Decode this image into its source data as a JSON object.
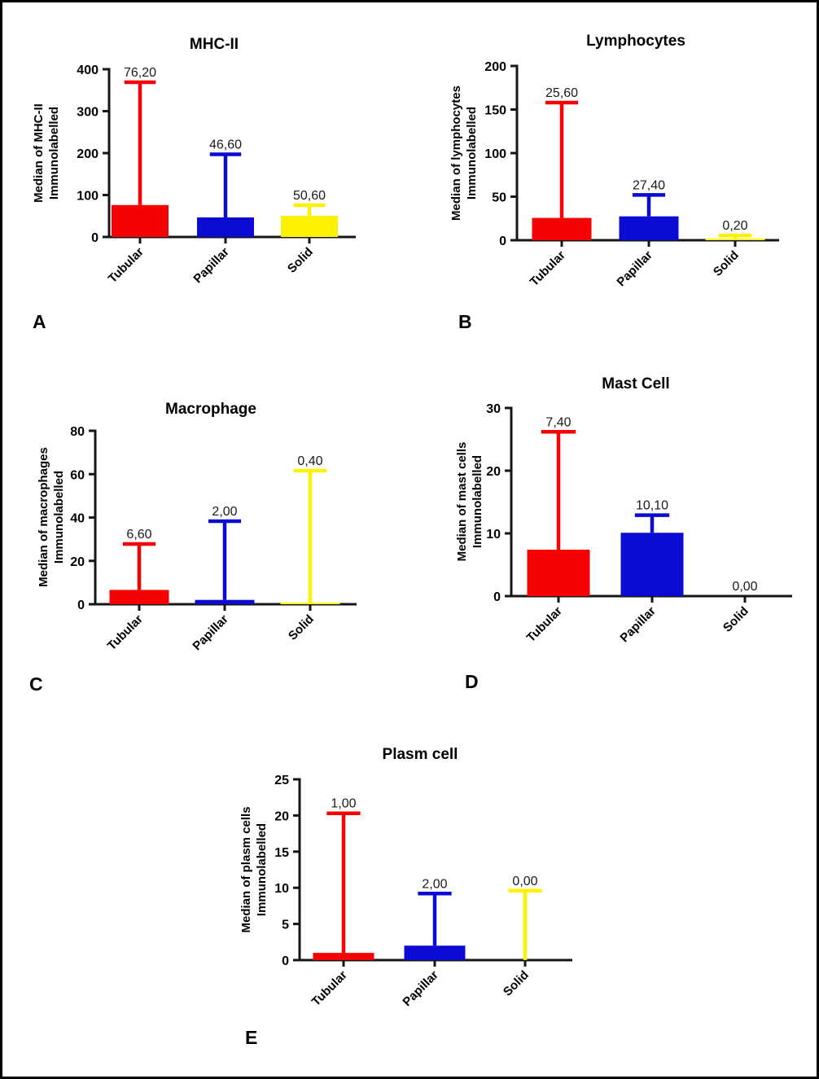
{
  "figure": {
    "background": "#FFFFFF",
    "frame_color": "#000000",
    "axis_color": "#161616",
    "text_color": "#000000",
    "value_label_color": "#1A1A1A"
  },
  "palette": {
    "tubular": "#F70202",
    "papillar": "#0B0BD4",
    "solid": "#FFF200"
  },
  "chart_data": [
    {
      "type": "bar",
      "panel_label": "A",
      "title": "MHC-II",
      "ylabel_lines": [
        "Median of MHC-II",
        "Immunolabelled"
      ],
      "categories": [
        "Tubular",
        "Papillar",
        "Solid"
      ],
      "values": [
        76.2,
        46.6,
        50.6
      ],
      "value_labels": [
        "76,20",
        "46,60",
        "50,60"
      ],
      "error_tops": [
        369,
        197,
        76
      ],
      "ylim": [
        0,
        400
      ],
      "yticks": [
        0,
        100,
        200,
        300,
        400
      ],
      "grid": false,
      "legend": "none"
    },
    {
      "type": "bar",
      "panel_label": "B",
      "title": "Lymphocytes",
      "ylabel_lines": [
        "Median of lymphocytes",
        "Immunolabelled"
      ],
      "categories": [
        "Tubular",
        "Papillar",
        "Solid"
      ],
      "values": [
        25.6,
        27.4,
        0.2
      ],
      "value_labels": [
        "25,60",
        "27,40",
        "0,20"
      ],
      "error_tops": [
        158,
        52,
        5.5
      ],
      "ylim": [
        0,
        200
      ],
      "yticks": [
        0,
        50,
        100,
        150,
        200
      ],
      "grid": false,
      "legend": "none"
    },
    {
      "type": "bar",
      "panel_label": "C",
      "title": "Macrophage",
      "ylabel_lines": [
        "Median of macrophages",
        "Immunolabelled"
      ],
      "categories": [
        "Tubular",
        "Papillar",
        "Solid"
      ],
      "values": [
        6.6,
        2.0,
        0.4
      ],
      "value_labels": [
        "6,60",
        "2,00",
        "0,40"
      ],
      "error_tops": [
        27.8,
        38.3,
        61.6
      ],
      "ylim": [
        0,
        80
      ],
      "yticks": [
        0,
        20,
        40,
        60,
        80
      ],
      "grid": false,
      "legend": "none"
    },
    {
      "type": "bar",
      "panel_label": "D",
      "title": "Mast Cell",
      "ylabel_lines": [
        "Median of mast cells",
        "Immunolabelled"
      ],
      "categories": [
        "Tubular",
        "Papillar",
        "Solid"
      ],
      "values": [
        7.4,
        10.1,
        0
      ],
      "value_labels": [
        "7,40",
        "10,10",
        "0,00"
      ],
      "error_tops": [
        26.2,
        12.9,
        null
      ],
      "ylim": [
        0,
        30
      ],
      "yticks": [
        0,
        10,
        20,
        30
      ],
      "grid": false,
      "legend": "none"
    },
    {
      "type": "bar",
      "panel_label": "E",
      "title": "Plasm cell",
      "ylabel_lines": [
        "Median of plasm cells",
        "Immunolabelled"
      ],
      "categories": [
        "Tubular",
        "Papillar",
        "Solid"
      ],
      "values": [
        1.0,
        2.0,
        0
      ],
      "value_labels": [
        "1,00",
        "2,00",
        "0,00"
      ],
      "error_tops": [
        20.3,
        9.2,
        9.6
      ],
      "ylim": [
        0,
        25
      ],
      "yticks": [
        0,
        5,
        10,
        15,
        20,
        25
      ],
      "grid": false,
      "legend": "none"
    }
  ]
}
